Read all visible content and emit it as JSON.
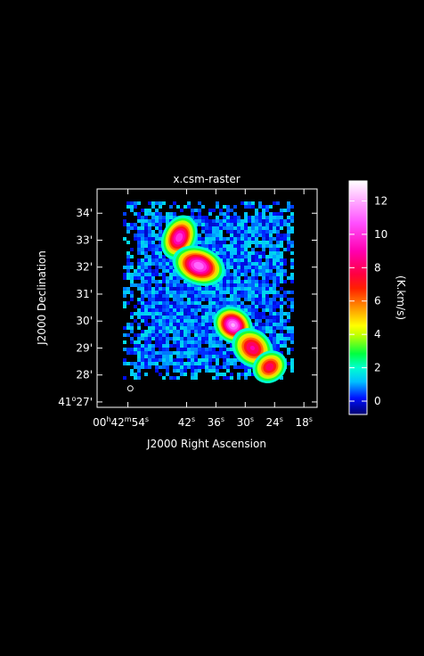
{
  "chart_data": {
    "type": "heatmap",
    "title": "x.csm-raster",
    "xlabel": "J2000 Right Ascension",
    "ylabel": "J2000 Declination",
    "colorbar_label": "(K.km/s)",
    "x_ticks": [
      {
        "value": 54,
        "h": "00",
        "m": "42",
        "s": "54"
      },
      {
        "value": 42,
        "s": "42"
      },
      {
        "value": 36,
        "s": "36"
      },
      {
        "value": 30,
        "s": "30"
      },
      {
        "value": 24,
        "s": "24"
      },
      {
        "value": 18,
        "s": "18"
      }
    ],
    "x_range_seconds": [
      60.3,
      15.3
    ],
    "y_ticks": [
      {
        "value": 27,
        "deg": "41",
        "arcmin": "27"
      },
      {
        "value": 28,
        "arcmin": "28"
      },
      {
        "value": 29,
        "arcmin": "29"
      },
      {
        "value": 30,
        "arcmin": "30"
      },
      {
        "value": 31,
        "arcmin": "31"
      },
      {
        "value": 32,
        "arcmin": "32"
      },
      {
        "value": 33,
        "arcmin": "33"
      },
      {
        "value": 34,
        "arcmin": "34"
      }
    ],
    "y_range_arcmin": [
      26.8,
      34.9
    ],
    "colorbar_ticks": [
      0,
      2,
      4,
      6,
      8,
      10,
      12
    ],
    "colorbar_range": [
      -0.8,
      13.2
    ],
    "sources": [
      {
        "ra_s": 43.5,
        "dec_arcmin": 33.1,
        "peak": 10.5,
        "sx": 1.4,
        "sy": 0.35
      },
      {
        "ra_s": 39.5,
        "dec_arcmin": 32.05,
        "peak": 11.5,
        "sx": 2.2,
        "sy": 0.28
      },
      {
        "ra_s": 32.5,
        "dec_arcmin": 29.85,
        "peak": 12.0,
        "sx": 1.4,
        "sy": 0.3
      },
      {
        "ra_s": 28.5,
        "dec_arcmin": 29.0,
        "peak": 9.0,
        "sx": 1.6,
        "sy": 0.35
      },
      {
        "ra_s": 25.0,
        "dec_arcmin": 28.3,
        "peak": 8.5,
        "sx": 1.6,
        "sy": 0.25
      }
    ],
    "beam_marker": {
      "ra_s": 53.5,
      "dec_arcmin": 27.5
    }
  }
}
